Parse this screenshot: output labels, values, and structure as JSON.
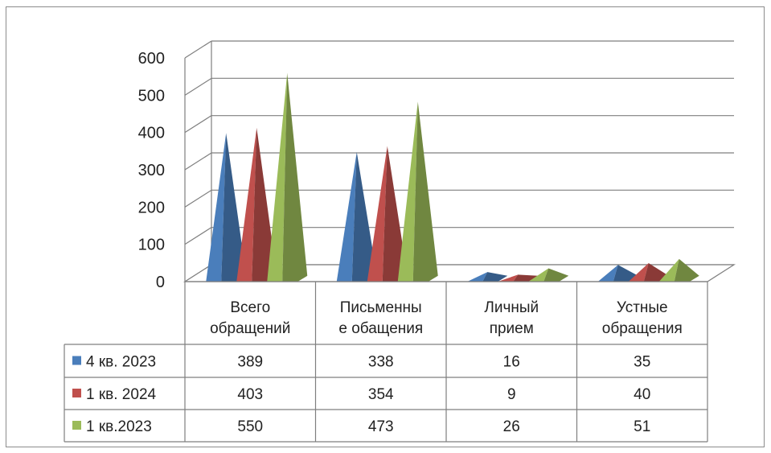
{
  "chart_data": {
    "type": "bar",
    "title": "",
    "xlabel": "",
    "ylabel": "",
    "ylim": [
      0,
      600
    ],
    "yticks": [
      "0",
      "100",
      "200",
      "300",
      "400",
      "500",
      "600"
    ],
    "categories": [
      [
        "Всего",
        "обращений"
      ],
      [
        "Письменны",
        "е обащения"
      ],
      [
        "Личный",
        "прием"
      ],
      [
        "Устные",
        "обращения"
      ]
    ],
    "series": [
      {
        "name": "4 кв. 2023",
        "values": [
          389,
          338,
          16,
          35
        ],
        "color": "#4a7ebb"
      },
      {
        "name": "1 кв. 2024",
        "values": [
          403,
          354,
          9,
          40
        ],
        "color": "#c0504d"
      },
      {
        "name": "1 кв.2023",
        "values": [
          550,
          473,
          26,
          51
        ],
        "color": "#9bbb59"
      }
    ],
    "grid": true,
    "legend": "data-table-left",
    "shape": "3d-pyramid"
  }
}
